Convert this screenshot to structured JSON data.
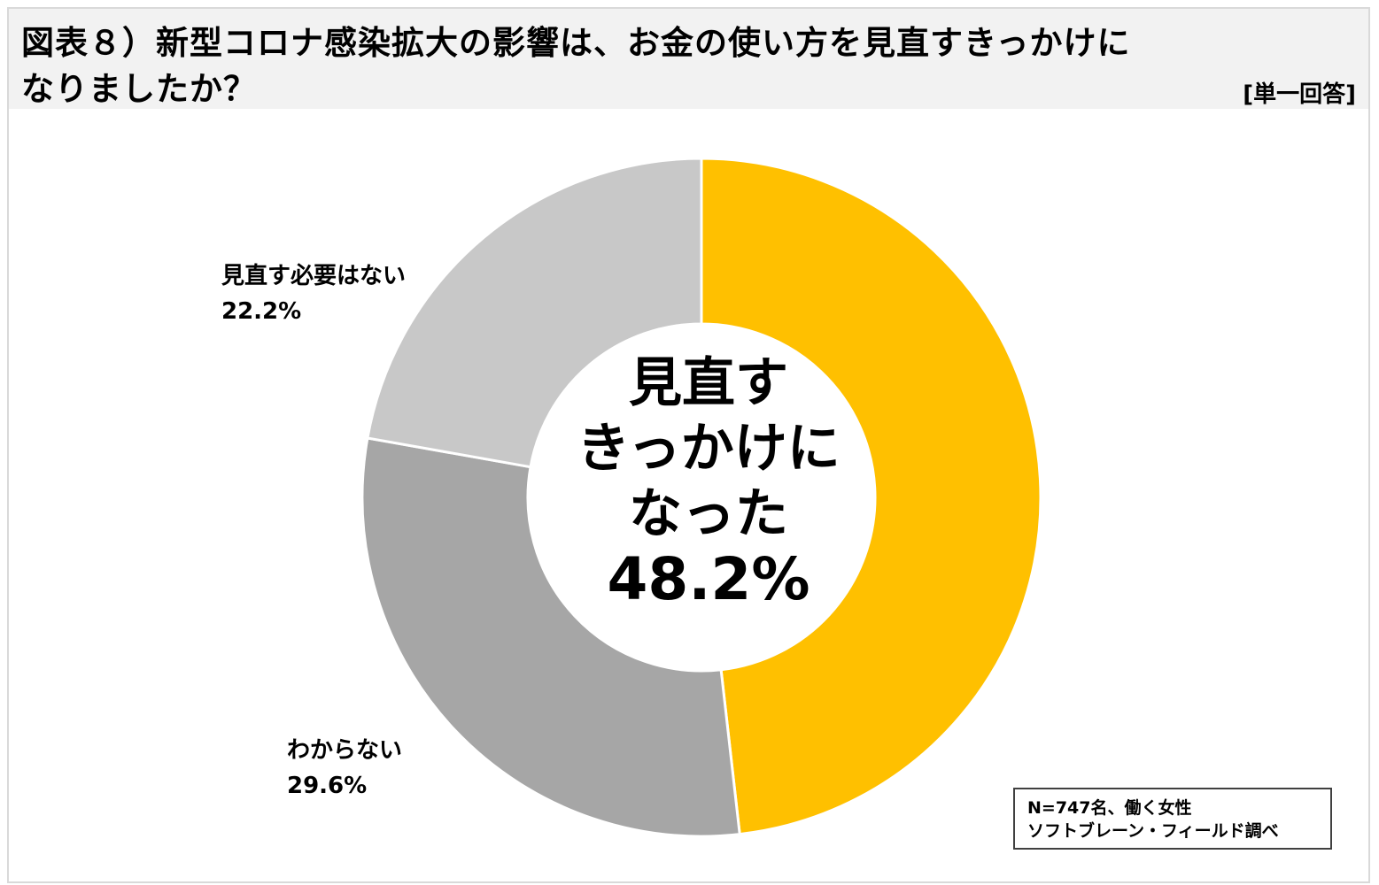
{
  "header": {
    "title_line1": "図表８）新型コロナ感染拡大の影響は、お金の使い方を見直すきっかけに",
    "title_line2": "なりましたか？",
    "answer_type": "[単一回答]"
  },
  "chart_data": {
    "type": "pie",
    "title": "図表８）新型コロナ感染拡大の影響は、お金の使い方を見直すきっかけになりましたか？",
    "donut": true,
    "slices": [
      {
        "label": "見直すきっかけになった",
        "value": 48.2,
        "display": "48.2%",
        "color": "#ffc000"
      },
      {
        "label": "わからない",
        "value": 29.6,
        "display": "29.6%",
        "color": "#a6a6a6"
      },
      {
        "label": "見直す必要はない",
        "value": 22.2,
        "display": "22.2%",
        "color": "#c8c8c8"
      }
    ],
    "center_label_lines": [
      "見直す",
      "きっかけに",
      "なった",
      "48.2%"
    ]
  },
  "labels": {
    "no_need_name": "見直す必要はない",
    "no_need_pct": "22.2%",
    "unknown_name": "わからない",
    "unknown_pct": "29.6%"
  },
  "source": {
    "line1": "N=747名、働く女性",
    "line2": "ソフトブレーン・フィールド調べ"
  }
}
